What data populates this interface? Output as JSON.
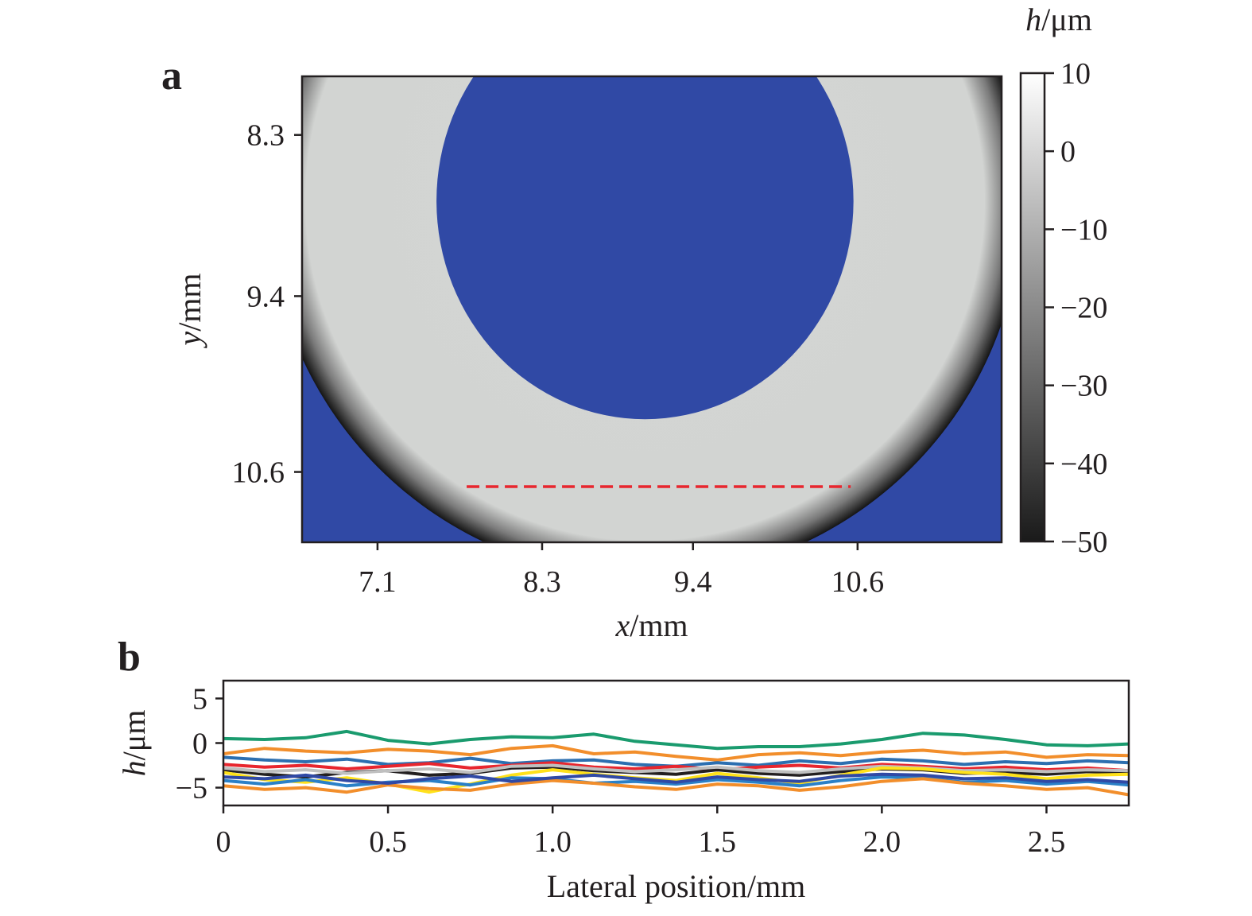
{
  "panels": {
    "a": "a",
    "b": "b"
  },
  "colors": {
    "background_mask": "#3049a5",
    "scan_line": "#e8262e",
    "axis": "#231f20"
  },
  "chart_data": [
    {
      "type": "heatmap",
      "panel": "a",
      "xlabel_var": "x",
      "xlabel_unit": "/mm",
      "ylabel_var": "y",
      "ylabel_unit": "/mm",
      "x_ticks": [
        "7.1",
        "8.3",
        "9.4",
        "10.6"
      ],
      "y_ticks": [
        "8.3",
        "9.4",
        "10.6"
      ],
      "x_tick_values": [
        7.1,
        8.3,
        9.4,
        10.6
      ],
      "y_tick_values": [
        8.3,
        9.4,
        10.6
      ],
      "xlim": [
        6.55,
        11.65
      ],
      "ylim": [
        7.9,
        11.08
      ],
      "y_inverted": true,
      "colorbar": {
        "label_var": "h",
        "label_unit": "/μm",
        "ticks": [
          "10",
          "0",
          "−10",
          "−20",
          "−30",
          "−40",
          "−50"
        ],
        "range": [
          -50,
          10
        ],
        "colormap": "gray"
      },
      "annulus": {
        "center": [
          9.05,
          8.75
        ],
        "outer_radius_mm": 2.75,
        "inner_radius_x_mm": 1.52,
        "inner_radius_y_mm": 1.49,
        "surface_h_um": 0
      },
      "scan_line": {
        "x_start": 7.75,
        "x_end": 10.55,
        "y": 10.7
      }
    },
    {
      "type": "line",
      "panel": "b",
      "xlabel": "Lateral position/mm",
      "ylabel_var": "h",
      "ylabel_unit": "/μm",
      "x_ticks": [
        "0",
        "0.5",
        "1.0",
        "1.5",
        "2.0",
        "2.5"
      ],
      "y_ticks": [
        "5",
        "0",
        "−5"
      ],
      "x_tick_values": [
        0,
        0.5,
        1.0,
        1.5,
        2.0,
        2.5
      ],
      "y_tick_values": [
        5,
        0,
        -5
      ],
      "xlim": [
        0,
        2.75
      ],
      "ylim": [
        -7,
        7
      ],
      "x": [
        0,
        0.125,
        0.25,
        0.375,
        0.5,
        0.625,
        0.75,
        0.875,
        1.0,
        1.125,
        1.25,
        1.375,
        1.5,
        1.625,
        1.75,
        1.875,
        2.0,
        2.125,
        2.25,
        2.375,
        2.5,
        2.625,
        2.75
      ],
      "series": [
        {
          "color": "#1a9b6e",
          "values": [
            0.5,
            0.4,
            0.6,
            1.3,
            0.3,
            -0.1,
            0.4,
            0.7,
            0.6,
            1.0,
            0.2,
            -0.2,
            -0.6,
            -0.4,
            -0.4,
            -0.1,
            0.4,
            1.1,
            0.9,
            0.4,
            -0.2,
            -0.3,
            -0.1
          ]
        },
        {
          "color": "#f28e2b",
          "values": [
            -1.2,
            -0.6,
            -0.9,
            -1.1,
            -0.7,
            -0.9,
            -1.3,
            -0.6,
            -0.3,
            -1.2,
            -1.0,
            -1.5,
            -1.9,
            -1.3,
            -1.1,
            -1.4,
            -1.0,
            -0.8,
            -1.2,
            -1.0,
            -1.6,
            -1.3,
            -1.4
          ]
        },
        {
          "color": "#2c6fb0",
          "values": [
            -1.6,
            -1.9,
            -2.1,
            -1.8,
            -2.4,
            -2.2,
            -1.7,
            -2.3,
            -2.0,
            -1.9,
            -2.4,
            -2.6,
            -2.2,
            -2.5,
            -2.0,
            -2.3,
            -1.8,
            -2.0,
            -2.4,
            -2.1,
            -2.3,
            -2.0,
            -2.2
          ]
        },
        {
          "color": "#e8262e",
          "values": [
            -2.4,
            -2.7,
            -2.5,
            -2.9,
            -2.6,
            -2.3,
            -2.8,
            -2.5,
            -2.2,
            -2.7,
            -2.9,
            -2.6,
            -3.0,
            -2.7,
            -2.5,
            -2.8,
            -2.4,
            -2.6,
            -2.9,
            -2.7,
            -3.0,
            -2.8,
            -3.1
          ]
        },
        {
          "color": "#231f20",
          "values": [
            -3.0,
            -3.5,
            -3.8,
            -3.3,
            -3.1,
            -3.6,
            -3.4,
            -2.8,
            -2.7,
            -3.1,
            -3.3,
            -3.5,
            -3.0,
            -3.4,
            -3.6,
            -3.2,
            -2.9,
            -3.0,
            -3.4,
            -3.3,
            -3.5,
            -3.2,
            -3.4
          ]
        },
        {
          "color": "#bfbfbf",
          "values": [
            -2.8,
            -3.2,
            -3.0,
            -3.4,
            -3.1,
            -2.9,
            -3.3,
            -2.6,
            -2.5,
            -2.9,
            -3.2,
            -3.0,
            -2.7,
            -3.1,
            -3.3,
            -2.9,
            -2.6,
            -2.8,
            -3.1,
            -3.0,
            -3.2,
            -3.0,
            -3.1
          ]
        },
        {
          "color": "#ffe11a",
          "values": [
            -3.3,
            -4.1,
            -4.4,
            -3.9,
            -4.6,
            -5.5,
            -4.6,
            -3.6,
            -3.0,
            -3.5,
            -3.9,
            -4.2,
            -3.4,
            -3.9,
            -4.5,
            -3.6,
            -2.8,
            -2.9,
            -3.3,
            -3.5,
            -4.0,
            -3.6,
            -3.5
          ]
        },
        {
          "color": "#2a80c7",
          "values": [
            -4.2,
            -4.6,
            -4.1,
            -4.8,
            -4.4,
            -4.2,
            -4.7,
            -3.9,
            -4.0,
            -4.5,
            -4.3,
            -4.6,
            -4.1,
            -4.4,
            -4.8,
            -4.2,
            -3.8,
            -3.9,
            -4.4,
            -4.2,
            -4.6,
            -4.3,
            -4.7
          ]
        },
        {
          "color": "#f28e2b",
          "values": [
            -4.8,
            -5.2,
            -5.0,
            -5.5,
            -4.7,
            -5.1,
            -5.3,
            -4.6,
            -4.2,
            -4.5,
            -4.9,
            -5.2,
            -4.6,
            -4.8,
            -5.3,
            -4.9,
            -4.3,
            -4.0,
            -4.5,
            -4.8,
            -5.2,
            -5.0,
            -5.8
          ]
        },
        {
          "color": "#3049a5",
          "values": [
            -3.8,
            -4.0,
            -3.6,
            -4.2,
            -4.5,
            -4.0,
            -3.7,
            -4.3,
            -3.9,
            -3.6,
            -4.0,
            -4.4,
            -3.8,
            -4.1,
            -4.3,
            -3.7,
            -3.5,
            -3.6,
            -4.0,
            -3.9,
            -4.3,
            -4.1,
            -4.4
          ]
        }
      ]
    }
  ]
}
